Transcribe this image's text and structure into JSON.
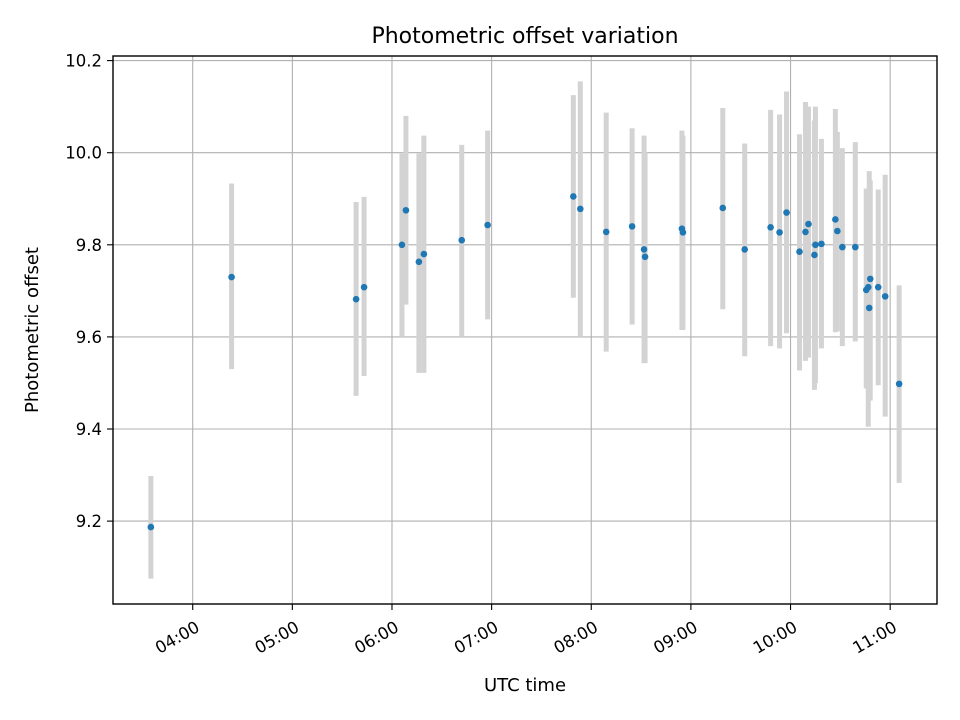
{
  "chart_data": {
    "type": "scatter",
    "title": "Photometric offset variation",
    "xlabel": "UTC time",
    "ylabel": "Photometric offset",
    "x_unit": "UTC hours",
    "xlim": [
      3.2,
      11.47
    ],
    "ylim": [
      9.02,
      10.21
    ],
    "x_ticks": [
      {
        "value": 4,
        "label": "04:00"
      },
      {
        "value": 5,
        "label": "05:00"
      },
      {
        "value": 6,
        "label": "06:00"
      },
      {
        "value": 7,
        "label": "07:00"
      },
      {
        "value": 8,
        "label": "08:00"
      },
      {
        "value": 9,
        "label": "09:00"
      },
      {
        "value": 10,
        "label": "10:00"
      },
      {
        "value": 11,
        "label": "11:00"
      }
    ],
    "y_ticks": [
      {
        "value": 9.2,
        "label": "9.2"
      },
      {
        "value": 9.4,
        "label": "9.4"
      },
      {
        "value": 9.6,
        "label": "9.6"
      },
      {
        "value": 9.8,
        "label": "9.8"
      },
      {
        "value": 10.0,
        "label": "10.0"
      },
      {
        "value": 10.2,
        "label": "10.2"
      }
    ],
    "grid": true,
    "x_tick_rotation": "rotated",
    "point_color": "#1f77b4",
    "errorbar_color": "#d3d3d3",
    "points": [
      {
        "x": 3.58,
        "y": 9.187,
        "ylo": 9.075,
        "yhi": 9.298
      },
      {
        "x": 4.39,
        "y": 9.73,
        "ylo": 9.53,
        "yhi": 9.933
      },
      {
        "x": 5.64,
        "y": 9.682,
        "ylo": 9.472,
        "yhi": 9.893
      },
      {
        "x": 5.72,
        "y": 9.708,
        "ylo": 9.515,
        "yhi": 9.904
      },
      {
        "x": 6.1,
        "y": 9.8,
        "ylo": 9.6,
        "yhi": 9.998
      },
      {
        "x": 6.14,
        "y": 9.875,
        "ylo": 9.67,
        "yhi": 10.08
      },
      {
        "x": 6.27,
        "y": 9.763,
        "ylo": 9.522,
        "yhi": 9.998
      },
      {
        "x": 6.32,
        "y": 9.78,
        "ylo": 9.522,
        "yhi": 10.037
      },
      {
        "x": 6.7,
        "y": 9.81,
        "ylo": 9.6,
        "yhi": 10.017
      },
      {
        "x": 6.96,
        "y": 9.843,
        "ylo": 9.638,
        "yhi": 10.048
      },
      {
        "x": 7.82,
        "y": 9.905,
        "ylo": 9.685,
        "yhi": 10.125
      },
      {
        "x": 7.89,
        "y": 9.878,
        "ylo": 9.6,
        "yhi": 10.155
      },
      {
        "x": 8.15,
        "y": 9.828,
        "ylo": 9.568,
        "yhi": 10.087
      },
      {
        "x": 8.41,
        "y": 9.84,
        "ylo": 9.627,
        "yhi": 10.053
      },
      {
        "x": 8.53,
        "y": 9.79,
        "ylo": 9.543,
        "yhi": 10.037
      },
      {
        "x": 8.54,
        "y": 9.774,
        "ylo": 9.543,
        "yhi": 10.0
      },
      {
        "x": 8.91,
        "y": 9.835,
        "ylo": 9.615,
        "yhi": 10.048
      },
      {
        "x": 8.92,
        "y": 9.827,
        "ylo": 9.615,
        "yhi": 10.037
      },
      {
        "x": 9.32,
        "y": 9.88,
        "ylo": 9.66,
        "yhi": 10.097
      },
      {
        "x": 9.54,
        "y": 9.79,
        "ylo": 9.558,
        "yhi": 10.02
      },
      {
        "x": 9.8,
        "y": 9.838,
        "ylo": 9.58,
        "yhi": 10.093
      },
      {
        "x": 9.89,
        "y": 9.827,
        "ylo": 9.575,
        "yhi": 10.083
      },
      {
        "x": 9.96,
        "y": 9.87,
        "ylo": 9.608,
        "yhi": 10.133
      },
      {
        "x": 10.09,
        "y": 9.785,
        "ylo": 9.527,
        "yhi": 10.04
      },
      {
        "x": 10.15,
        "y": 9.828,
        "ylo": 9.548,
        "yhi": 10.11
      },
      {
        "x": 10.18,
        "y": 9.845,
        "ylo": 9.555,
        "yhi": 10.1
      },
      {
        "x": 10.24,
        "y": 9.778,
        "ylo": 9.485,
        "yhi": 10.07
      },
      {
        "x": 10.25,
        "y": 9.8,
        "ylo": 9.5,
        "yhi": 10.1
      },
      {
        "x": 10.31,
        "y": 9.802,
        "ylo": 9.575,
        "yhi": 10.03
      },
      {
        "x": 10.45,
        "y": 9.855,
        "ylo": 9.61,
        "yhi": 10.095
      },
      {
        "x": 10.47,
        "y": 9.83,
        "ylo": 9.612,
        "yhi": 10.045
      },
      {
        "x": 10.52,
        "y": 9.795,
        "ylo": 9.58,
        "yhi": 10.01
      },
      {
        "x": 10.65,
        "y": 9.795,
        "ylo": 9.59,
        "yhi": 10.023
      },
      {
        "x": 10.76,
        "y": 9.702,
        "ylo": 9.488,
        "yhi": 9.922
      },
      {
        "x": 10.78,
        "y": 9.708,
        "ylo": 9.405,
        "yhi": 9.922
      },
      {
        "x": 10.79,
        "y": 9.663,
        "ylo": 9.48,
        "yhi": 9.96
      },
      {
        "x": 10.8,
        "y": 9.726,
        "ylo": 9.462,
        "yhi": 9.94
      },
      {
        "x": 10.88,
        "y": 9.708,
        "ylo": 9.495,
        "yhi": 9.92
      },
      {
        "x": 10.95,
        "y": 9.688,
        "ylo": 9.427,
        "yhi": 9.952
      },
      {
        "x": 11.09,
        "y": 9.498,
        "ylo": 9.283,
        "yhi": 9.712
      }
    ]
  }
}
